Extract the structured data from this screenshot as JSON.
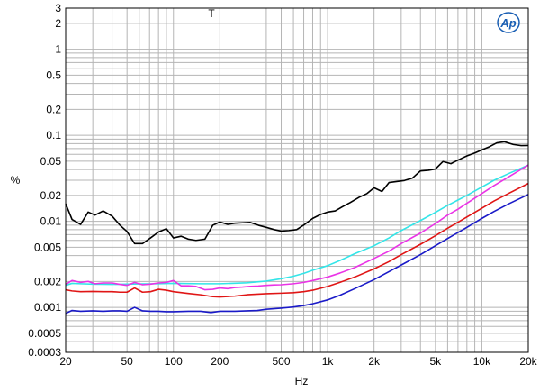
{
  "chart_data": {
    "type": "line",
    "title": "",
    "marker": "T",
    "logo": "Ap",
    "xlabel": "Hz",
    "ylabel": "%",
    "xscale": "log",
    "yscale": "log",
    "xlim": [
      20,
      20000
    ],
    "ylim": [
      0.0003,
      3
    ],
    "grid": true,
    "x_tick_labels": [
      {
        "v": 20,
        "t": "20"
      },
      {
        "v": 50,
        "t": "50"
      },
      {
        "v": 100,
        "t": "100"
      },
      {
        "v": 200,
        "t": "200"
      },
      {
        "v": 500,
        "t": "500"
      },
      {
        "v": 1000,
        "t": "1k"
      },
      {
        "v": 2000,
        "t": "2k"
      },
      {
        "v": 5000,
        "t": "5k"
      },
      {
        "v": 10000,
        "t": "10k"
      },
      {
        "v": 20000,
        "t": "20k"
      }
    ],
    "y_tick_labels": [
      {
        "v": 3,
        "t": "3"
      },
      {
        "v": 2,
        "t": "2"
      },
      {
        "v": 1,
        "t": "1"
      },
      {
        "v": 0.5,
        "t": "0.5"
      },
      {
        "v": 0.2,
        "t": "0.2"
      },
      {
        "v": 0.1,
        "t": "0.1"
      },
      {
        "v": 0.05,
        "t": "0.05"
      },
      {
        "v": 0.02,
        "t": "0.02"
      },
      {
        "v": 0.01,
        "t": "0.01"
      },
      {
        "v": 0.005,
        "t": "0.005"
      },
      {
        "v": 0.002,
        "t": "0.002"
      },
      {
        "v": 0.001,
        "t": "0.001"
      },
      {
        "v": 0.0005,
        "t": "0.0005"
      },
      {
        "v": 0.0003,
        "t": "0.0003"
      }
    ],
    "series": [
      {
        "color": "#000000",
        "points": [
          [
            20,
            0.016
          ],
          [
            22,
            0.0105
          ],
          [
            25,
            0.0092
          ],
          [
            28,
            0.0128
          ],
          [
            31,
            0.0118
          ],
          [
            35,
            0.0132
          ],
          [
            40,
            0.0115
          ],
          [
            45,
            0.009
          ],
          [
            50,
            0.0076
          ],
          [
            56,
            0.0055
          ],
          [
            63,
            0.0055
          ],
          [
            71,
            0.0064
          ],
          [
            80,
            0.0075
          ],
          [
            90,
            0.0082
          ],
          [
            100,
            0.0064
          ],
          [
            112,
            0.0067
          ],
          [
            125,
            0.0062
          ],
          [
            140,
            0.006
          ],
          [
            160,
            0.0062
          ],
          [
            180,
            0.009
          ],
          [
            200,
            0.0098
          ],
          [
            225,
            0.0092
          ],
          [
            250,
            0.0095
          ],
          [
            280,
            0.0096
          ],
          [
            315,
            0.0097
          ],
          [
            355,
            0.009
          ],
          [
            400,
            0.0085
          ],
          [
            450,
            0.008
          ],
          [
            500,
            0.0077
          ],
          [
            560,
            0.0078
          ],
          [
            630,
            0.008
          ],
          [
            710,
            0.0092
          ],
          [
            800,
            0.0108
          ],
          [
            900,
            0.012
          ],
          [
            1000,
            0.0128
          ],
          [
            1120,
            0.0132
          ],
          [
            1250,
            0.0148
          ],
          [
            1400,
            0.0165
          ],
          [
            1600,
            0.019
          ],
          [
            1800,
            0.021
          ],
          [
            2000,
            0.0245
          ],
          [
            2250,
            0.0222
          ],
          [
            2500,
            0.0282
          ],
          [
            2800,
            0.029
          ],
          [
            3150,
            0.0298
          ],
          [
            3550,
            0.0318
          ],
          [
            4000,
            0.0385
          ],
          [
            4500,
            0.0392
          ],
          [
            5000,
            0.0405
          ],
          [
            5600,
            0.0495
          ],
          [
            6300,
            0.0467
          ],
          [
            7100,
            0.052
          ],
          [
            8000,
            0.0575
          ],
          [
            9000,
            0.0622
          ],
          [
            10000,
            0.0675
          ],
          [
            11200,
            0.0735
          ],
          [
            12500,
            0.0815
          ],
          [
            14000,
            0.084
          ],
          [
            16000,
            0.078
          ],
          [
            18000,
            0.0758
          ],
          [
            20000,
            0.076
          ]
        ]
      },
      {
        "color": "#33e5e8",
        "points": [
          [
            20,
            0.0018
          ],
          [
            22,
            0.0019
          ],
          [
            25,
            0.00188
          ],
          [
            30,
            0.00186
          ],
          [
            40,
            0.00185
          ],
          [
            50,
            0.00186
          ],
          [
            60,
            0.00187
          ],
          [
            80,
            0.00188
          ],
          [
            100,
            0.0019
          ],
          [
            150,
            0.00188
          ],
          [
            200,
            0.00188
          ],
          [
            300,
            0.00193
          ],
          [
            400,
            0.00202
          ],
          [
            500,
            0.00215
          ],
          [
            600,
            0.0023
          ],
          [
            700,
            0.00248
          ],
          [
            800,
            0.0027
          ],
          [
            1000,
            0.00305
          ],
          [
            1200,
            0.0035
          ],
          [
            1500,
            0.0042
          ],
          [
            2000,
            0.0052
          ],
          [
            2500,
            0.0064
          ],
          [
            3000,
            0.0078
          ],
          [
            4000,
            0.0102
          ],
          [
            5000,
            0.0127
          ],
          [
            6000,
            0.0153
          ],
          [
            8000,
            0.02
          ],
          [
            10000,
            0.025
          ],
          [
            12000,
            0.03
          ],
          [
            15000,
            0.036
          ],
          [
            20000,
            0.045
          ]
        ]
      },
      {
        "color": "#ea33e6",
        "points": [
          [
            20,
            0.00185
          ],
          [
            22,
            0.00205
          ],
          [
            25,
            0.00195
          ],
          [
            28,
            0.002
          ],
          [
            31,
            0.00188
          ],
          [
            35,
            0.00192
          ],
          [
            40,
            0.00192
          ],
          [
            45,
            0.00185
          ],
          [
            50,
            0.0018
          ],
          [
            56,
            0.00195
          ],
          [
            63,
            0.00183
          ],
          [
            71,
            0.00186
          ],
          [
            80,
            0.00192
          ],
          [
            90,
            0.00195
          ],
          [
            100,
            0.00205
          ],
          [
            112,
            0.00178
          ],
          [
            125,
            0.00178
          ],
          [
            140,
            0.00175
          ],
          [
            160,
            0.0016
          ],
          [
            180,
            0.00162
          ],
          [
            200,
            0.00168
          ],
          [
            225,
            0.00165
          ],
          [
            250,
            0.0017
          ],
          [
            280,
            0.00172
          ],
          [
            315,
            0.00175
          ],
          [
            355,
            0.00177
          ],
          [
            400,
            0.0018
          ],
          [
            450,
            0.00182
          ],
          [
            500,
            0.00183
          ],
          [
            600,
            0.00188
          ],
          [
            700,
            0.00195
          ],
          [
            800,
            0.00205
          ],
          [
            1000,
            0.00225
          ],
          [
            1200,
            0.0025
          ],
          [
            1500,
            0.0029
          ],
          [
            2000,
            0.0037
          ],
          [
            2500,
            0.0045
          ],
          [
            3000,
            0.0055
          ],
          [
            4000,
            0.0073
          ],
          [
            5000,
            0.0094
          ],
          [
            6000,
            0.0118
          ],
          [
            7000,
            0.0138
          ],
          [
            8000,
            0.0162
          ],
          [
            10000,
            0.021
          ],
          [
            12000,
            0.026
          ],
          [
            15000,
            0.033
          ],
          [
            20000,
            0.045
          ]
        ]
      },
      {
        "color": "#e01515",
        "points": [
          [
            20,
            0.0016
          ],
          [
            22,
            0.00155
          ],
          [
            25,
            0.00152
          ],
          [
            30,
            0.00153
          ],
          [
            35,
            0.00152
          ],
          [
            40,
            0.00152
          ],
          [
            45,
            0.0015
          ],
          [
            50,
            0.0015
          ],
          [
            56,
            0.00168
          ],
          [
            63,
            0.0015
          ],
          [
            71,
            0.00152
          ],
          [
            80,
            0.00162
          ],
          [
            90,
            0.00158
          ],
          [
            100,
            0.00152
          ],
          [
            125,
            0.00145
          ],
          [
            150,
            0.0014
          ],
          [
            180,
            0.00133
          ],
          [
            200,
            0.00132
          ],
          [
            250,
            0.00135
          ],
          [
            300,
            0.0014
          ],
          [
            400,
            0.00144
          ],
          [
            500,
            0.00146
          ],
          [
            600,
            0.00148
          ],
          [
            700,
            0.00152
          ],
          [
            800,
            0.00158
          ],
          [
            1000,
            0.00175
          ],
          [
            1200,
            0.00195
          ],
          [
            1500,
            0.00225
          ],
          [
            2000,
            0.0028
          ],
          [
            2500,
            0.0034
          ],
          [
            3000,
            0.0041
          ],
          [
            4000,
            0.0054
          ],
          [
            5000,
            0.0068
          ],
          [
            6000,
            0.0083
          ],
          [
            8000,
            0.0112
          ],
          [
            10000,
            0.0142
          ],
          [
            12000,
            0.0172
          ],
          [
            15000,
            0.0212
          ],
          [
            20000,
            0.0275
          ]
        ]
      },
      {
        "color": "#1a1ac8",
        "points": [
          [
            20,
            0.00085
          ],
          [
            22,
            0.00092
          ],
          [
            25,
            0.0009
          ],
          [
            30,
            0.00091
          ],
          [
            35,
            0.0009
          ],
          [
            40,
            0.00091
          ],
          [
            45,
            0.00091
          ],
          [
            50,
            0.0009
          ],
          [
            56,
            0.001
          ],
          [
            63,
            0.00091
          ],
          [
            71,
            0.0009
          ],
          [
            80,
            0.0009
          ],
          [
            90,
            0.00089
          ],
          [
            100,
            0.00089
          ],
          [
            125,
            0.0009
          ],
          [
            150,
            0.0009
          ],
          [
            175,
            0.00087
          ],
          [
            200,
            0.0009
          ],
          [
            250,
            0.0009
          ],
          [
            300,
            0.00091
          ],
          [
            350,
            0.00092
          ],
          [
            400,
            0.00095
          ],
          [
            500,
            0.00098
          ],
          [
            600,
            0.00101
          ],
          [
            700,
            0.00105
          ],
          [
            800,
            0.0011
          ],
          [
            1000,
            0.00122
          ],
          [
            1200,
            0.00138
          ],
          [
            1500,
            0.00165
          ],
          [
            2000,
            0.0021
          ],
          [
            2500,
            0.0026
          ],
          [
            3000,
            0.0031
          ],
          [
            4000,
            0.0041
          ],
          [
            5000,
            0.0052
          ],
          [
            6000,
            0.0063
          ],
          [
            8000,
            0.0085
          ],
          [
            10000,
            0.0108
          ],
          [
            12000,
            0.013
          ],
          [
            15000,
            0.016
          ],
          [
            20000,
            0.0205
          ]
        ]
      }
    ]
  }
}
